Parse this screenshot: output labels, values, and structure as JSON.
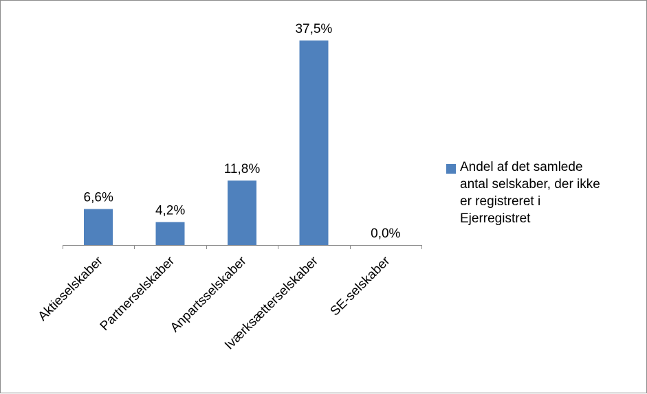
{
  "chart_data": {
    "type": "bar",
    "categories": [
      "Aktieselskaber",
      "Partnerselskaber",
      "Anpartsselskaber",
      "Iværksætterselskaber",
      "SE-selskaber"
    ],
    "series": [
      {
        "name": "Andel af det samlede\nantal selskaber, der ikke\ner registreret i\nEjerregistret",
        "values": [
          6.6,
          4.2,
          11.8,
          37.5,
          0.0
        ],
        "data_labels": [
          "6,6%",
          "4,2%",
          "11,8%",
          "37,5%",
          "0,0%"
        ]
      }
    ],
    "ylim": [
      0,
      40
    ],
    "grid": false,
    "legend_position": "right",
    "colors": {
      "bar": "#4F81BD",
      "axis": "#8C8C8C"
    }
  }
}
